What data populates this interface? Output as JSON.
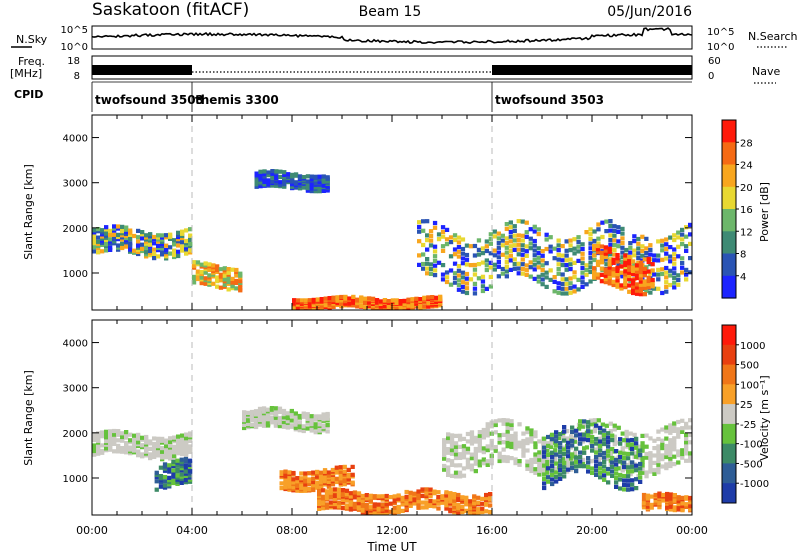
{
  "header": {
    "station": "Saskatoon (fitACF)",
    "beam": "Beam 15",
    "date": "05/Jun/2016"
  },
  "strip_labels": {
    "nsky": "N.Sky",
    "nsearch": "N.Search",
    "freq_line1": "Freq.",
    "freq_line2": "[MHz]",
    "nave": "Nave",
    "cpid": "CPID",
    "nsky_ticks": [
      "10^5",
      "10^0"
    ],
    "nsearch_ticks": [
      "10^5",
      "10^0"
    ],
    "freq_ticks": [
      "18",
      "8"
    ],
    "nave_ticks": [
      "60",
      "0"
    ]
  },
  "cpid_segments": [
    {
      "label": "twofsound 3503",
      "start_h": 0,
      "end_h": 4
    },
    {
      "label": "themis 3300",
      "start_h": 4,
      "end_h": 16
    },
    {
      "label": "twofsound 3503",
      "start_h": 16,
      "end_h": 24
    }
  ],
  "chart_data": [
    {
      "type": "heatmap",
      "name": "power",
      "xlabel": "",
      "ylabel": "Slant Range [km]",
      "xlim": [
        0,
        24
      ],
      "ylim": [
        180,
        4500
      ],
      "yticks": [
        1000,
        2000,
        3000,
        4000
      ],
      "colorbar": {
        "label": "Power [dB]",
        "ticks": [
          "4",
          "8",
          "12",
          "16",
          "20",
          "24",
          "28"
        ],
        "colors": [
          "#1c24ff",
          "#2a54b4",
          "#3e8a74",
          "#6cb66a",
          "#e8d832",
          "#f8a61e",
          "#f56a14",
          "#ff1a0a"
        ]
      },
      "features": [
        {
          "t": [
            0,
            4
          ],
          "range": [
            1300,
            2100
          ],
          "level": "mixed"
        },
        {
          "t": [
            4,
            6
          ],
          "range": [
            600,
            1300
          ],
          "level": "moderate"
        },
        {
          "t": [
            6.5,
            9.5
          ],
          "range": [
            2800,
            3300
          ],
          "level": "weak"
        },
        {
          "t": [
            8,
            14
          ],
          "range": [
            180,
            500
          ],
          "level": "strong"
        },
        {
          "t": [
            13,
            24
          ],
          "range": [
            500,
            2300
          ],
          "level": "mixed"
        },
        {
          "t": [
            20,
            22.5
          ],
          "range": [
            500,
            1700
          ],
          "level": "strong"
        }
      ]
    },
    {
      "type": "heatmap",
      "name": "velocity",
      "xlabel": "Time UT",
      "ylabel": "Slant Range [km]",
      "xlim": [
        0,
        24
      ],
      "ylim": [
        180,
        4500
      ],
      "yticks": [
        1000,
        2000,
        3000,
        4000
      ],
      "xticks": [
        "00:00",
        "04:00",
        "08:00",
        "12:00",
        "16:00",
        "20:00",
        "00:00"
      ],
      "colorbar": {
        "label": "Velocity [m s⁻¹]",
        "ticks": [
          "1000",
          "500",
          "100",
          "25",
          "-25",
          "-100",
          "-500",
          "-1000"
        ],
        "colors": [
          "#1e3ca8",
          "#2e5d96",
          "#3c8a66",
          "#66c23c",
          "#cccac4",
          "#f8a028",
          "#f07618",
          "#e84010",
          "#ff1a0a"
        ]
      },
      "features": [
        {
          "t": [
            0,
            4
          ],
          "range": [
            1400,
            2100
          ],
          "level": "ground"
        },
        {
          "t": [
            2.5,
            4
          ],
          "range": [
            700,
            1500
          ],
          "level": "toward"
        },
        {
          "t": [
            6,
            9.5
          ],
          "range": [
            2000,
            2600
          ],
          "level": "ground"
        },
        {
          "t": [
            7.5,
            10.5
          ],
          "range": [
            700,
            1300
          ],
          "level": "away"
        },
        {
          "t": [
            9,
            16
          ],
          "range": [
            180,
            800
          ],
          "level": "away"
        },
        {
          "t": [
            14,
            24
          ],
          "range": [
            1000,
            2400
          ],
          "level": "ground"
        },
        {
          "t": [
            18,
            22
          ],
          "range": [
            700,
            2400
          ],
          "level": "toward"
        },
        {
          "t": [
            22,
            24
          ],
          "range": [
            180,
            700
          ],
          "level": "away"
        }
      ]
    }
  ]
}
